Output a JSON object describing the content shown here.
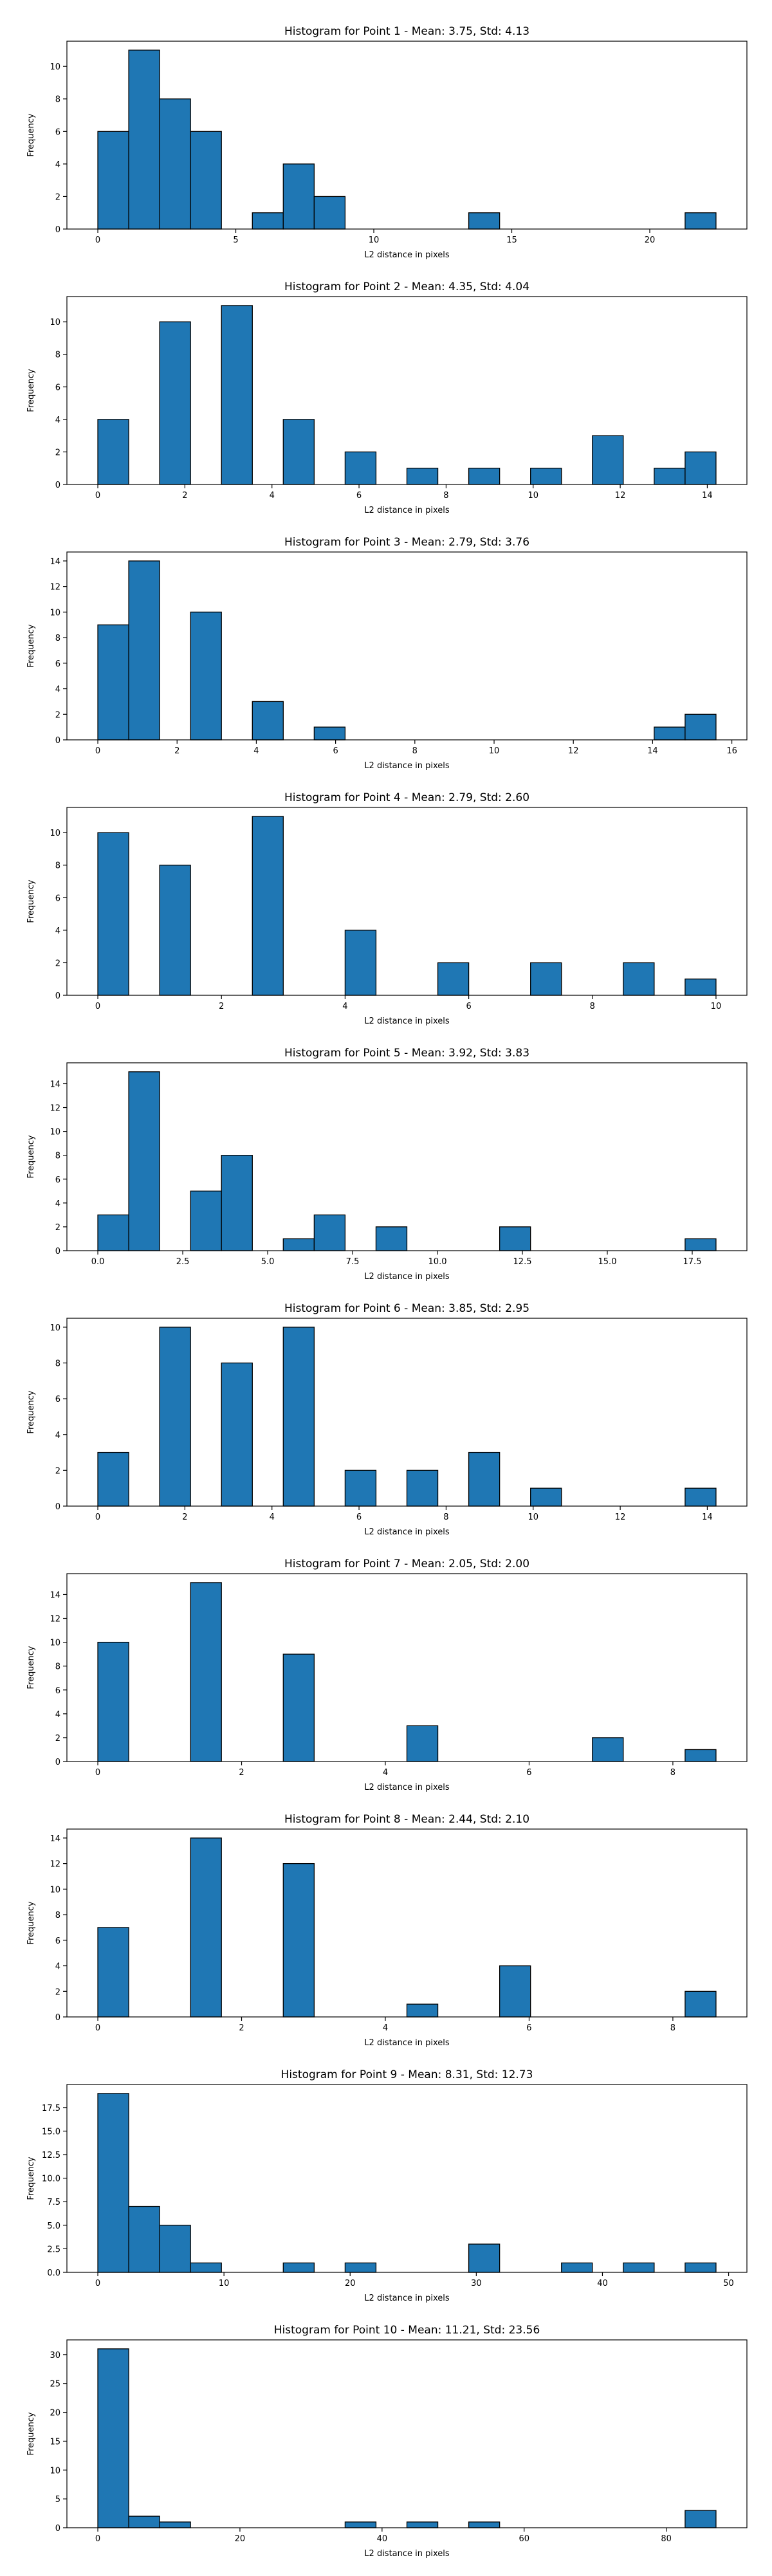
{
  "colors": {
    "bar_fill": "#1f77b4",
    "bar_edge": "#000000",
    "axes": "#000000"
  },
  "chart_data": [
    {
      "type": "bar",
      "title": "Histogram for Point 1 - Mean: 3.75, Std: 4.13",
      "xlabel": "L2 distance in pixels",
      "ylabel": "Frequency",
      "xlim": [
        -1.12,
        23.52
      ],
      "ylim": [
        0,
        11.55
      ],
      "xticks": [
        0,
        5,
        10,
        15,
        20
      ],
      "xtick_labels": [
        "0",
        "5",
        "10",
        "15",
        "20"
      ],
      "yticks": [
        0,
        2,
        4,
        6,
        8,
        10
      ],
      "ytick_labels": [
        "0",
        "2",
        "4",
        "6",
        "8",
        "10"
      ],
      "bin_edges": [
        0,
        1.12,
        2.24,
        3.36,
        4.48,
        5.6,
        6.72,
        7.84,
        8.96,
        10.08,
        11.2,
        12.32,
        13.44,
        14.56,
        15.68,
        16.8,
        17.92,
        19.04,
        20.16,
        21.28,
        22.4
      ],
      "values": [
        6,
        11,
        8,
        6,
        0,
        1,
        4,
        2,
        0,
        0,
        0,
        0,
        1,
        0,
        0,
        0,
        0,
        0,
        0,
        1
      ]
    },
    {
      "type": "bar",
      "title": "Histogram for Point 2 - Mean: 4.35, Std: 4.04",
      "xlabel": "L2 distance in pixels",
      "ylabel": "Frequency",
      "xlim": [
        -0.71,
        14.91
      ],
      "ylim": [
        0,
        11.55
      ],
      "xticks": [
        0,
        2,
        4,
        6,
        8,
        10,
        12,
        14
      ],
      "xtick_labels": [
        "0",
        "2",
        "4",
        "6",
        "8",
        "10",
        "12",
        "14"
      ],
      "yticks": [
        0,
        2,
        4,
        6,
        8,
        10
      ],
      "ytick_labels": [
        "0",
        "2",
        "4",
        "6",
        "8",
        "10"
      ],
      "bin_edges": [
        0,
        0.71,
        1.42,
        2.13,
        2.84,
        3.55,
        4.26,
        4.97,
        5.68,
        6.39,
        7.1,
        7.81,
        8.52,
        9.23,
        9.94,
        10.65,
        11.36,
        12.07,
        12.78,
        13.49,
        14.2
      ],
      "values": [
        4,
        0,
        10,
        0,
        11,
        0,
        4,
        0,
        2,
        0,
        1,
        0,
        1,
        0,
        1,
        0,
        3,
        0,
        1,
        2
      ]
    },
    {
      "type": "bar",
      "title": "Histogram for Point 3 - Mean: 2.79, Std: 3.76",
      "xlabel": "L2 distance in pixels",
      "ylabel": "Frequency",
      "xlim": [
        -0.78,
        16.38
      ],
      "ylim": [
        0,
        14.7
      ],
      "xticks": [
        0,
        2,
        4,
        6,
        8,
        10,
        12,
        14,
        16
      ],
      "xtick_labels": [
        "0",
        "2",
        "4",
        "6",
        "8",
        "10",
        "12",
        "14",
        "16"
      ],
      "yticks": [
        0,
        2,
        4,
        6,
        8,
        10,
        12,
        14
      ],
      "ytick_labels": [
        "0",
        "2",
        "4",
        "6",
        "8",
        "10",
        "12",
        "14"
      ],
      "bin_edges": [
        0,
        0.78,
        1.56,
        2.34,
        3.12,
        3.9,
        4.68,
        5.46,
        6.24,
        7.02,
        7.8,
        8.58,
        9.36,
        10.14,
        10.92,
        11.7,
        12.48,
        13.26,
        14.04,
        14.82,
        15.6
      ],
      "values": [
        9,
        14,
        0,
        10,
        0,
        3,
        0,
        1,
        0,
        0,
        0,
        0,
        0,
        0,
        0,
        0,
        0,
        0,
        1,
        2
      ]
    },
    {
      "type": "bar",
      "title": "Histogram for Point 4 - Mean: 2.79, Std: 2.60",
      "xlabel": "L2 distance in pixels",
      "ylabel": "Frequency",
      "xlim": [
        -0.5,
        10.5
      ],
      "ylim": [
        0,
        11.55
      ],
      "xticks": [
        0,
        2,
        4,
        6,
        8,
        10
      ],
      "xtick_labels": [
        "0",
        "2",
        "4",
        "6",
        "8",
        "10"
      ],
      "yticks": [
        0,
        2,
        4,
        6,
        8,
        10
      ],
      "ytick_labels": [
        "0",
        "2",
        "4",
        "6",
        "8",
        "10"
      ],
      "bin_edges": [
        0,
        0.5,
        1,
        1.5,
        2,
        2.5,
        3,
        3.5,
        4,
        4.5,
        5,
        5.5,
        6,
        6.5,
        7,
        7.5,
        8,
        8.5,
        9,
        9.5,
        10
      ],
      "values": [
        10,
        0,
        8,
        0,
        0,
        11,
        0,
        0,
        4,
        0,
        0,
        2,
        0,
        0,
        2,
        0,
        0,
        2,
        0,
        1
      ]
    },
    {
      "type": "bar",
      "title": "Histogram for Point 5 - Mean: 3.92, Std: 3.83",
      "xlabel": "L2 distance in pixels",
      "ylabel": "Frequency",
      "xlim": [
        -0.91,
        19.11
      ],
      "ylim": [
        0,
        15.75
      ],
      "xticks": [
        0,
        2.5,
        5,
        7.5,
        10,
        12.5,
        15,
        17.5
      ],
      "xtick_labels": [
        "0.0",
        "2.5",
        "5.0",
        "7.5",
        "10.0",
        "12.5",
        "15.0",
        "17.5"
      ],
      "yticks": [
        0,
        2,
        4,
        6,
        8,
        10,
        12,
        14
      ],
      "ytick_labels": [
        "0",
        "2",
        "4",
        "6",
        "8",
        "10",
        "12",
        "14"
      ],
      "bin_edges": [
        0,
        0.91,
        1.82,
        2.73,
        3.64,
        4.55,
        5.46,
        6.37,
        7.28,
        8.19,
        9.1,
        10.01,
        10.92,
        11.83,
        12.74,
        13.65,
        14.56,
        15.47,
        16.38,
        17.29,
        18.2
      ],
      "values": [
        3,
        15,
        0,
        5,
        8,
        0,
        1,
        3,
        0,
        2,
        0,
        0,
        0,
        2,
        0,
        0,
        0,
        0,
        0,
        1
      ]
    },
    {
      "type": "bar",
      "title": "Histogram for Point 6 - Mean: 3.85, Std: 2.95",
      "xlabel": "L2 distance in pixels",
      "ylabel": "Frequency",
      "xlim": [
        -0.71,
        14.91
      ],
      "ylim": [
        0,
        10.5
      ],
      "xticks": [
        0,
        2,
        4,
        6,
        8,
        10,
        12,
        14
      ],
      "xtick_labels": [
        "0",
        "2",
        "4",
        "6",
        "8",
        "10",
        "12",
        "14"
      ],
      "yticks": [
        0,
        2,
        4,
        6,
        8,
        10
      ],
      "ytick_labels": [
        "0",
        "2",
        "4",
        "6",
        "8",
        "10"
      ],
      "bin_edges": [
        0,
        0.71,
        1.42,
        2.13,
        2.84,
        3.55,
        4.26,
        4.97,
        5.68,
        6.39,
        7.1,
        7.81,
        8.52,
        9.23,
        9.94,
        10.65,
        11.36,
        12.07,
        12.78,
        13.49,
        14.2
      ],
      "values": [
        3,
        0,
        10,
        0,
        8,
        0,
        10,
        0,
        2,
        0,
        2,
        0,
        3,
        0,
        1,
        0,
        0,
        0,
        0,
        1
      ]
    },
    {
      "type": "bar",
      "title": "Histogram for Point 7 - Mean: 2.05, Std: 2.00",
      "xlabel": "L2 distance in pixels",
      "ylabel": "Frequency",
      "xlim": [
        -0.43,
        9.03
      ],
      "ylim": [
        0,
        15.75
      ],
      "xticks": [
        0,
        2,
        4,
        6,
        8
      ],
      "xtick_labels": [
        "0",
        "2",
        "4",
        "6",
        "8"
      ],
      "yticks": [
        0,
        2,
        4,
        6,
        8,
        10,
        12,
        14
      ],
      "ytick_labels": [
        "0",
        "2",
        "4",
        "6",
        "8",
        "10",
        "12",
        "14"
      ],
      "bin_edges": [
        0,
        0.43,
        0.86,
        1.29,
        1.72,
        2.15,
        2.58,
        3.01,
        3.44,
        3.87,
        4.3,
        4.73,
        5.16,
        5.59,
        6.02,
        6.45,
        6.88,
        7.31,
        7.74,
        8.17,
        8.6
      ],
      "values": [
        10,
        0,
        0,
        15,
        0,
        0,
        9,
        0,
        0,
        0,
        3,
        0,
        0,
        0,
        0,
        0,
        2,
        0,
        0,
        1
      ]
    },
    {
      "type": "bar",
      "title": "Histogram for Point 8 - Mean: 2.44, Std: 2.10",
      "xlabel": "L2 distance in pixels",
      "ylabel": "Frequency",
      "xlim": [
        -0.43,
        9.03
      ],
      "ylim": [
        0,
        14.7
      ],
      "xticks": [
        0,
        2,
        4,
        6,
        8
      ],
      "xtick_labels": [
        "0",
        "2",
        "4",
        "6",
        "8"
      ],
      "yticks": [
        0,
        2,
        4,
        6,
        8,
        10,
        12,
        14
      ],
      "ytick_labels": [
        "0",
        "2",
        "4",
        "6",
        "8",
        "10",
        "12",
        "14"
      ],
      "bin_edges": [
        0,
        0.43,
        0.86,
        1.29,
        1.72,
        2.15,
        2.58,
        3.01,
        3.44,
        3.87,
        4.3,
        4.73,
        5.16,
        5.59,
        6.02,
        6.45,
        6.88,
        7.31,
        7.74,
        8.17,
        8.6
      ],
      "values": [
        7,
        0,
        0,
        14,
        0,
        0,
        12,
        0,
        0,
        0,
        1,
        0,
        0,
        4,
        0,
        0,
        0,
        0,
        0,
        2
      ]
    },
    {
      "type": "bar",
      "title": "Histogram for Point 9 - Mean: 8.31, Std: 12.73",
      "xlabel": "L2 distance in pixels",
      "ylabel": "Frequency",
      "xlim": [
        -2.45,
        51.45
      ],
      "ylim": [
        0,
        19.95
      ],
      "xticks": [
        0,
        10,
        20,
        30,
        40,
        50
      ],
      "xtick_labels": [
        "0",
        "10",
        "20",
        "30",
        "40",
        "50"
      ],
      "yticks": [
        0,
        2.5,
        5,
        7.5,
        10,
        12.5,
        15,
        17.5
      ],
      "ytick_labels": [
        "0.0",
        "2.5",
        "5.0",
        "7.5",
        "10.0",
        "12.5",
        "15.0",
        "17.5"
      ],
      "bin_edges": [
        0,
        2.45,
        4.9,
        7.35,
        9.8,
        12.25,
        14.7,
        17.15,
        19.6,
        22.05,
        24.5,
        26.95,
        29.4,
        31.85,
        34.3,
        36.75,
        39.2,
        41.65,
        44.1,
        46.55,
        49
      ],
      "values": [
        19,
        7,
        5,
        1,
        0,
        0,
        1,
        0,
        1,
        0,
        0,
        0,
        3,
        0,
        0,
        1,
        0,
        1,
        0,
        1
      ]
    },
    {
      "type": "bar",
      "title": "Histogram for Point 10 - Mean: 11.21, Std: 23.56",
      "xlabel": "L2 distance in pixels",
      "ylabel": "Frequency",
      "xlim": [
        -4.35,
        91.35
      ],
      "ylim": [
        0,
        32.55
      ],
      "xticks": [
        0,
        20,
        40,
        60,
        80
      ],
      "xtick_labels": [
        "0",
        "20",
        "40",
        "60",
        "80"
      ],
      "yticks": [
        0,
        5,
        10,
        15,
        20,
        25,
        30
      ],
      "ytick_labels": [
        "0",
        "5",
        "10",
        "15",
        "20",
        "25",
        "30"
      ],
      "bin_edges": [
        0,
        4.35,
        8.7,
        13.05,
        17.4,
        21.75,
        26.1,
        30.45,
        34.8,
        39.15,
        43.5,
        47.85,
        52.2,
        56.55,
        60.9,
        65.25,
        69.6,
        73.95,
        78.3,
        82.65,
        87
      ],
      "values": [
        31,
        2,
        1,
        0,
        0,
        0,
        0,
        0,
        1,
        0,
        1,
        0,
        1,
        0,
        0,
        0,
        0,
        0,
        0,
        3
      ]
    }
  ]
}
